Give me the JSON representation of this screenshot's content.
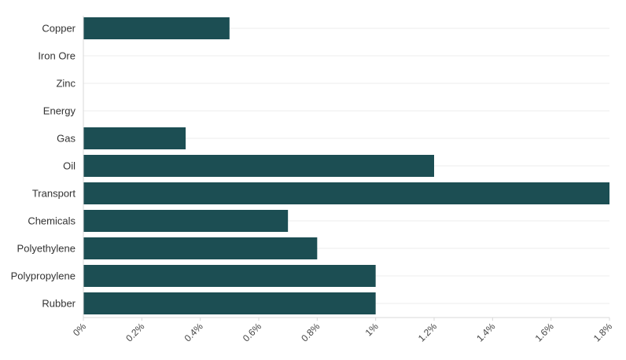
{
  "chart_data": {
    "type": "bar",
    "orientation": "horizontal",
    "categories": [
      "Copper",
      "Iron Ore",
      "Zinc",
      "Energy",
      "Gas",
      "Oil",
      "Transport",
      "Chemicals",
      "Polyethylene",
      "Polypropylene",
      "Rubber"
    ],
    "values": [
      0.5,
      0,
      0,
      0,
      0.35,
      1.2,
      1.8,
      0.7,
      0.8,
      1.0,
      1.0
    ],
    "x_ticks": [
      0,
      0.2,
      0.4,
      0.6,
      0.8,
      1.0,
      1.2,
      1.4,
      1.6,
      1.8
    ],
    "x_tick_labels": [
      "0%",
      "0.2%",
      "0.4%",
      "0.6%",
      "0.8%",
      "1%",
      "1.2%",
      "1.4%",
      "1.6%",
      "1.8%"
    ],
    "xlim": [
      0,
      1.8
    ],
    "unit": "%",
    "grid": true,
    "title": "",
    "xlabel": "",
    "ylabel": "",
    "bar_color": "#1c4e53"
  }
}
